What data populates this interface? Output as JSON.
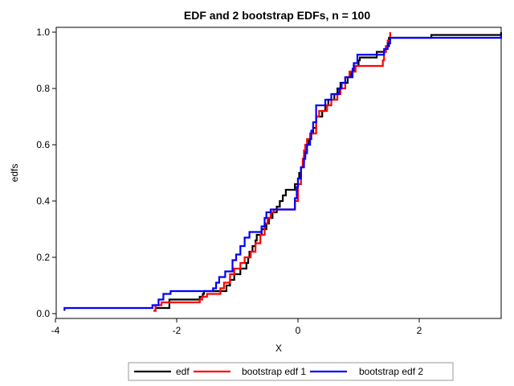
{
  "chart_data": {
    "type": "line",
    "title": "EDF and 2 bootstrap EDFs, n = 100",
    "xlabel": "X",
    "ylabel": "edfs",
    "xlim": [
      -4,
      3.4
    ],
    "ylim": [
      0,
      1.0
    ],
    "xticks": [
      -4,
      -2,
      0,
      2
    ],
    "yticks": [
      0.0,
      0.2,
      0.4,
      0.6,
      0.8,
      1.0
    ],
    "xtick_labels": [
      "-4",
      "-2",
      "0",
      "2"
    ],
    "ytick_labels": [
      "0.0",
      "0.2",
      "0.4",
      "0.6",
      "0.8",
      "1.0"
    ],
    "grid": false,
    "legend_position": "bottom",
    "series": [
      {
        "name": "edf",
        "color": "#000000",
        "points": [
          [
            -2.38,
            0.01
          ],
          [
            -2.35,
            0.02
          ],
          [
            -2.12,
            0.05
          ],
          [
            -1.62,
            0.06
          ],
          [
            -1.57,
            0.07
          ],
          [
            -1.55,
            0.08
          ],
          [
            -1.18,
            0.1
          ],
          [
            -1.12,
            0.12
          ],
          [
            -1.05,
            0.14
          ],
          [
            -0.95,
            0.16
          ],
          [
            -0.85,
            0.18
          ],
          [
            -0.82,
            0.2
          ],
          [
            -0.8,
            0.22
          ],
          [
            -0.75,
            0.24
          ],
          [
            -0.7,
            0.26
          ],
          [
            -0.68,
            0.28
          ],
          [
            -0.6,
            0.3
          ],
          [
            -0.52,
            0.32
          ],
          [
            -0.48,
            0.34
          ],
          [
            -0.42,
            0.36
          ],
          [
            -0.35,
            0.38
          ],
          [
            -0.3,
            0.4
          ],
          [
            -0.25,
            0.42
          ],
          [
            -0.2,
            0.44
          ],
          [
            -0.05,
            0.46
          ],
          [
            0.0,
            0.48
          ],
          [
            0.02,
            0.5
          ],
          [
            0.05,
            0.52
          ],
          [
            0.08,
            0.54
          ],
          [
            0.1,
            0.56
          ],
          [
            0.12,
            0.58
          ],
          [
            0.15,
            0.6
          ],
          [
            0.18,
            0.62
          ],
          [
            0.2,
            0.64
          ],
          [
            0.25,
            0.66
          ],
          [
            0.3,
            0.7
          ],
          [
            0.4,
            0.72
          ],
          [
            0.45,
            0.74
          ],
          [
            0.5,
            0.76
          ],
          [
            0.6,
            0.78
          ],
          [
            0.65,
            0.8
          ],
          [
            0.7,
            0.82
          ],
          [
            0.82,
            0.84
          ],
          [
            0.88,
            0.86
          ],
          [
            0.92,
            0.88
          ],
          [
            1.0,
            0.9
          ],
          [
            1.02,
            0.91
          ],
          [
            1.3,
            0.93
          ],
          [
            1.45,
            0.95
          ],
          [
            1.5,
            0.98
          ],
          [
            2.2,
            0.99
          ],
          [
            3.35,
            1.0
          ]
        ]
      },
      {
        "name": "bootstrap edf 1",
        "color": "#ff0000",
        "points": [
          [
            -2.38,
            0.01
          ],
          [
            -2.35,
            0.03
          ],
          [
            -2.25,
            0.04
          ],
          [
            -1.62,
            0.05
          ],
          [
            -1.58,
            0.06
          ],
          [
            -1.5,
            0.07
          ],
          [
            -1.28,
            0.09
          ],
          [
            -1.22,
            0.11
          ],
          [
            -1.12,
            0.14
          ],
          [
            -1.05,
            0.16
          ],
          [
            -0.95,
            0.18
          ],
          [
            -0.88,
            0.2
          ],
          [
            -0.78,
            0.22
          ],
          [
            -0.7,
            0.25
          ],
          [
            -0.62,
            0.28
          ],
          [
            -0.55,
            0.32
          ],
          [
            -0.5,
            0.34
          ],
          [
            -0.45,
            0.36
          ],
          [
            -0.4,
            0.37
          ],
          [
            -0.05,
            0.4
          ],
          [
            0.0,
            0.46
          ],
          [
            0.05,
            0.52
          ],
          [
            0.08,
            0.55
          ],
          [
            0.1,
            0.58
          ],
          [
            0.12,
            0.6
          ],
          [
            0.15,
            0.62
          ],
          [
            0.2,
            0.64
          ],
          [
            0.3,
            0.7
          ],
          [
            0.35,
            0.72
          ],
          [
            0.48,
            0.74
          ],
          [
            0.55,
            0.76
          ],
          [
            0.65,
            0.78
          ],
          [
            0.7,
            0.8
          ],
          [
            0.78,
            0.84
          ],
          [
            0.85,
            0.86
          ],
          [
            0.95,
            0.88
          ],
          [
            1.4,
            0.9
          ],
          [
            1.42,
            0.93
          ],
          [
            1.45,
            0.95
          ],
          [
            1.48,
            0.97
          ],
          [
            1.52,
            1.0
          ]
        ]
      },
      {
        "name": "bootstrap edf 2",
        "color": "#0000ff",
        "points": [
          [
            -3.85,
            0.01
          ],
          [
            -3.85,
            0.02
          ],
          [
            -2.4,
            0.03
          ],
          [
            -2.3,
            0.05
          ],
          [
            -2.22,
            0.07
          ],
          [
            -2.1,
            0.08
          ],
          [
            -1.4,
            0.09
          ],
          [
            -1.35,
            0.11
          ],
          [
            -1.3,
            0.13
          ],
          [
            -1.2,
            0.15
          ],
          [
            -1.08,
            0.19
          ],
          [
            -1.02,
            0.21
          ],
          [
            -0.95,
            0.24
          ],
          [
            -0.88,
            0.27
          ],
          [
            -0.8,
            0.29
          ],
          [
            -0.6,
            0.31
          ],
          [
            -0.55,
            0.34
          ],
          [
            -0.52,
            0.36
          ],
          [
            -0.45,
            0.37
          ],
          [
            -0.05,
            0.41
          ],
          [
            -0.02,
            0.45
          ],
          [
            0.0,
            0.48
          ],
          [
            0.05,
            0.52
          ],
          [
            0.1,
            0.55
          ],
          [
            0.12,
            0.57
          ],
          [
            0.15,
            0.6
          ],
          [
            0.2,
            0.62
          ],
          [
            0.22,
            0.65
          ],
          [
            0.25,
            0.68
          ],
          [
            0.3,
            0.74
          ],
          [
            0.45,
            0.76
          ],
          [
            0.55,
            0.78
          ],
          [
            0.68,
            0.8
          ],
          [
            0.72,
            0.82
          ],
          [
            0.78,
            0.84
          ],
          [
            0.9,
            0.87
          ],
          [
            0.92,
            0.89
          ],
          [
            0.98,
            0.92
          ],
          [
            1.42,
            0.94
          ],
          [
            1.48,
            0.96
          ],
          [
            1.52,
            0.98
          ],
          [
            2.15,
            0.98
          ],
          [
            3.35,
            0.99
          ]
        ]
      }
    ]
  }
}
